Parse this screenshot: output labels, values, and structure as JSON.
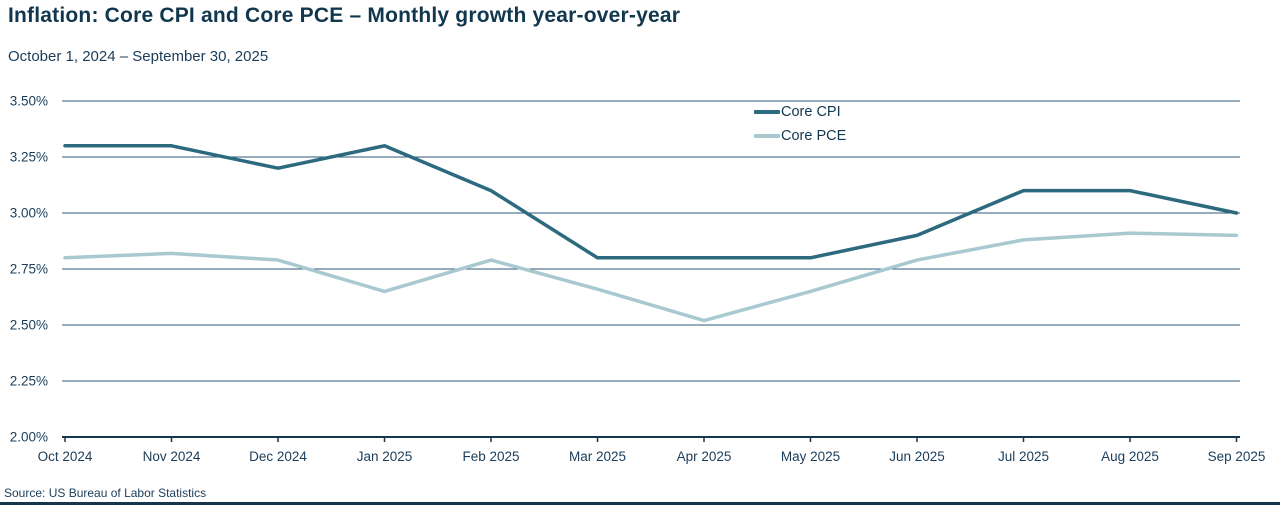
{
  "header": {
    "title": "Inflation: Core CPI and Core PCE – Monthly growth year-over-year",
    "subtitle": "October 1, 2024 – September 30, 2025"
  },
  "footer": {
    "source": "Source: US Bureau of Labor Statistics"
  },
  "colors": {
    "title_text": "#11374E",
    "axis_text": "#1B3D5A",
    "gridline": "#2E587A",
    "axis_line": "#16364E",
    "core_cpi_line": "#2D6A80",
    "core_pce_line": "#A8C9D0"
  },
  "chart_data": {
    "type": "line",
    "title": "Inflation: Core CPI and Core PCE – Monthly growth year-over-year",
    "subtitle": "October 1, 2024 – September 30, 2025",
    "categories": [
      "Oct 2024",
      "Nov 2024",
      "Dec 2024",
      "Jan 2025",
      "Feb 2025",
      "Mar 2025",
      "Apr 2025",
      "May 2025",
      "Jun 2025",
      "Jul 2025",
      "Aug 2025",
      "Sep 2025"
    ],
    "series": [
      {
        "name": "Core CPI",
        "color": "#2D6A80",
        "values": [
          3.3,
          3.3,
          3.2,
          3.3,
          3.1,
          2.8,
          2.8,
          2.8,
          2.9,
          3.1,
          3.1,
          3.0
        ]
      },
      {
        "name": "Core PCE",
        "color": "#A8C9D0",
        "values": [
          2.8,
          2.82,
          2.79,
          2.65,
          2.79,
          2.66,
          2.52,
          2.65,
          2.79,
          2.88,
          2.91,
          2.9
        ]
      }
    ],
    "ylim": [
      2.0,
      3.5
    ],
    "yticks": [
      {
        "value": 3.5,
        "label": "3.50%"
      },
      {
        "value": 3.25,
        "label": "3.25%"
      },
      {
        "value": 3.0,
        "label": "3.00%"
      },
      {
        "value": 2.75,
        "label": "2.75%"
      },
      {
        "value": 2.5,
        "label": "2.50%"
      },
      {
        "value": 2.25,
        "label": "2.25%"
      },
      {
        "value": 2.0,
        "label": "2.00%"
      }
    ],
    "grid": true,
    "legend_position": "top-center-right",
    "unit": "percent year-over-year"
  }
}
